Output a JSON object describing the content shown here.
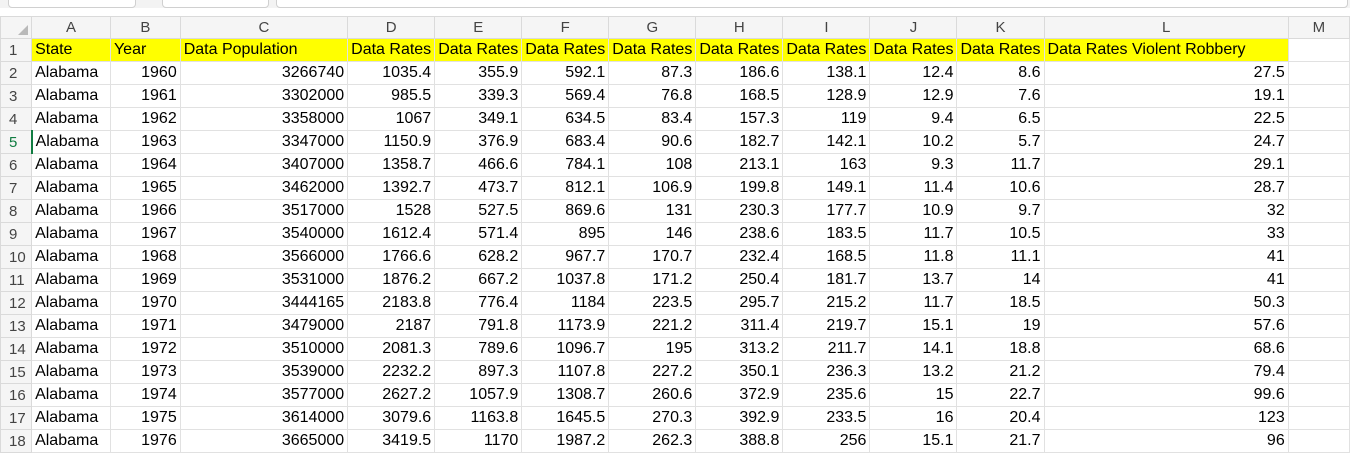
{
  "columns": [
    "A",
    "B",
    "C",
    "D",
    "E",
    "F",
    "G",
    "H",
    "I",
    "J",
    "K",
    "L",
    "M"
  ],
  "header_row": [
    "State",
    "Year",
    "Data Population",
    "Data Rates",
    "Data Rates",
    "Data Rates",
    "Data Rates",
    "Data Rates",
    "Data Rates",
    "Data Rates",
    "Data Rates",
    "Data Rates Violent Robbery"
  ],
  "rows": [
    [
      "Alabama",
      "1960",
      "3266740",
      "1035.4",
      "355.9",
      "592.1",
      "87.3",
      "186.6",
      "138.1",
      "12.4",
      "8.6",
      "27.5"
    ],
    [
      "Alabama",
      "1961",
      "3302000",
      "985.5",
      "339.3",
      "569.4",
      "76.8",
      "168.5",
      "128.9",
      "12.9",
      "7.6",
      "19.1"
    ],
    [
      "Alabama",
      "1962",
      "3358000",
      "1067",
      "349.1",
      "634.5",
      "83.4",
      "157.3",
      "119",
      "9.4",
      "6.5",
      "22.5"
    ],
    [
      "Alabama",
      "1963",
      "3347000",
      "1150.9",
      "376.9",
      "683.4",
      "90.6",
      "182.7",
      "142.1",
      "10.2",
      "5.7",
      "24.7"
    ],
    [
      "Alabama",
      "1964",
      "3407000",
      "1358.7",
      "466.6",
      "784.1",
      "108",
      "213.1",
      "163",
      "9.3",
      "11.7",
      "29.1"
    ],
    [
      "Alabama",
      "1965",
      "3462000",
      "1392.7",
      "473.7",
      "812.1",
      "106.9",
      "199.8",
      "149.1",
      "11.4",
      "10.6",
      "28.7"
    ],
    [
      "Alabama",
      "1966",
      "3517000",
      "1528",
      "527.5",
      "869.6",
      "131",
      "230.3",
      "177.7",
      "10.9",
      "9.7",
      "32"
    ],
    [
      "Alabama",
      "1967",
      "3540000",
      "1612.4",
      "571.4",
      "895",
      "146",
      "238.6",
      "183.5",
      "11.7",
      "10.5",
      "33"
    ],
    [
      "Alabama",
      "1968",
      "3566000",
      "1766.6",
      "628.2",
      "967.7",
      "170.7",
      "232.4",
      "168.5",
      "11.8",
      "11.1",
      "41"
    ],
    [
      "Alabama",
      "1969",
      "3531000",
      "1876.2",
      "667.2",
      "1037.8",
      "171.2",
      "250.4",
      "181.7",
      "13.7",
      "14",
      "41"
    ],
    [
      "Alabama",
      "1970",
      "3444165",
      "2183.8",
      "776.4",
      "1184",
      "223.5",
      "295.7",
      "215.2",
      "11.7",
      "18.5",
      "50.3"
    ],
    [
      "Alabama",
      "1971",
      "3479000",
      "2187",
      "791.8",
      "1173.9",
      "221.2",
      "311.4",
      "219.7",
      "15.1",
      "19",
      "57.6"
    ],
    [
      "Alabama",
      "1972",
      "3510000",
      "2081.3",
      "789.6",
      "1096.7",
      "195",
      "313.2",
      "211.7",
      "14.1",
      "18.8",
      "68.6"
    ],
    [
      "Alabama",
      "1973",
      "3539000",
      "2232.2",
      "897.3",
      "1107.8",
      "227.2",
      "350.1",
      "236.3",
      "13.2",
      "21.2",
      "79.4"
    ],
    [
      "Alabama",
      "1974",
      "3577000",
      "2627.2",
      "1057.9",
      "1308.7",
      "260.6",
      "372.9",
      "235.6",
      "15",
      "22.7",
      "99.6"
    ],
    [
      "Alabama",
      "1975",
      "3614000",
      "3079.6",
      "1163.8",
      "1645.5",
      "270.3",
      "392.9",
      "233.5",
      "16",
      "20.4",
      "123"
    ],
    [
      "Alabama",
      "1976",
      "3665000",
      "3419.5",
      "1170",
      "1987.2",
      "262.3",
      "388.8",
      "256",
      "15.1",
      "21.7",
      "96"
    ]
  ],
  "selected_row": 5,
  "colors": {
    "header_fill": "#ffff00",
    "selection": "#107c41",
    "gridline": "#e1e1e1"
  }
}
